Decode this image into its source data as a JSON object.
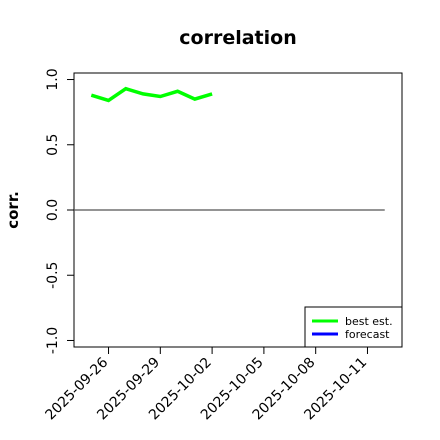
{
  "chart_data": {
    "type": "line",
    "title": "correlation",
    "xlabel": "",
    "ylabel": "corr.",
    "ylim": [
      -1.05,
      1.05
    ],
    "y_ticks": [
      -1.0,
      -0.5,
      0.0,
      0.5,
      1.0
    ],
    "y_tick_labels": [
      "-1.0",
      "-0.5",
      "0.0",
      "0.5",
      "1.0"
    ],
    "xlim": [
      "2025-09-24",
      "2025-10-13"
    ],
    "x_ticks": [
      "2025-09-26",
      "2025-09-29",
      "2025-10-02",
      "2025-10-05",
      "2025-10-08",
      "2025-10-11"
    ],
    "x_tick_colors": [
      "#000000",
      "#000000",
      "#228b22",
      "#000000",
      "#000000",
      "#000000"
    ],
    "reference_line": {
      "y": 0,
      "x_start": "2025-09-24",
      "x_end": "2025-10-12",
      "color": "#555555"
    },
    "series": [
      {
        "name": "best est.",
        "color": "#00ff00",
        "x": [
          "2025-09-25",
          "2025-09-26",
          "2025-09-27",
          "2025-09-28",
          "2025-09-29",
          "2025-09-30",
          "2025-10-01",
          "2025-10-02"
        ],
        "y": [
          0.88,
          0.84,
          0.93,
          0.89,
          0.87,
          0.91,
          0.85,
          0.89
        ]
      },
      {
        "name": "forecast",
        "color": "#0000ff",
        "x": [],
        "y": []
      }
    ],
    "legend": {
      "position": "bottom-right"
    },
    "grid": false
  }
}
